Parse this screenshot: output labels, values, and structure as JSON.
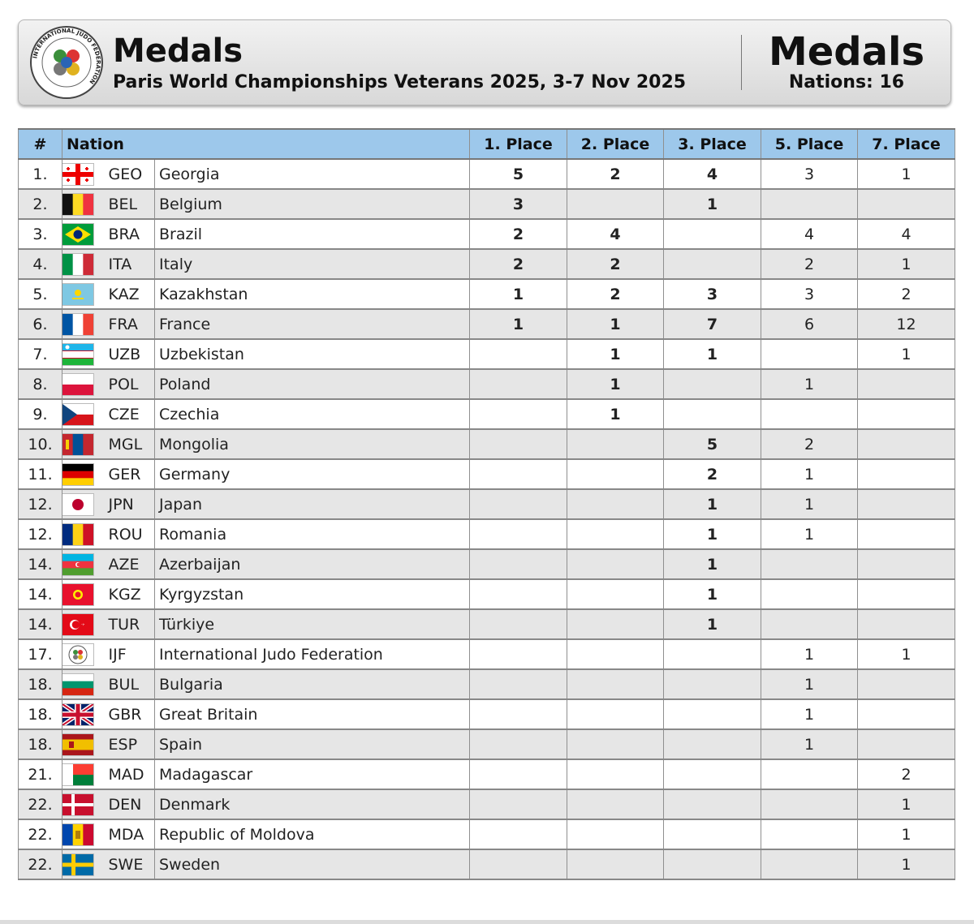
{
  "header": {
    "title": "Medals",
    "subtitle": "Paris World Championships Veterans 2025, 3-7 Nov 2025",
    "right_title": "Medals",
    "right_sub": "Nations: 16",
    "logo_text": "INTERNATIONAL JUDO FEDERATION"
  },
  "table": {
    "columns": [
      "#",
      "Nation",
      "1. Place",
      "2. Place",
      "3. Place",
      "5. Place",
      "7. Place"
    ],
    "rows": [
      {
        "rank": "1.",
        "code": "GEO",
        "name": "Georgia",
        "p1": "5",
        "p2": "2",
        "p3": "4",
        "p5": "3",
        "p7": "1",
        "flag": "geo-flag"
      },
      {
        "rank": "2.",
        "code": "BEL",
        "name": "Belgium",
        "p1": "3",
        "p2": "",
        "p3": "1",
        "p5": "",
        "p7": "",
        "flag": "bel-flag"
      },
      {
        "rank": "3.",
        "code": "BRA",
        "name": "Brazil",
        "p1": "2",
        "p2": "4",
        "p3": "",
        "p5": "4",
        "p7": "4",
        "flag": "bra-flag"
      },
      {
        "rank": "4.",
        "code": "ITA",
        "name": "Italy",
        "p1": "2",
        "p2": "2",
        "p3": "",
        "p5": "2",
        "p7": "1",
        "flag": "ita-flag"
      },
      {
        "rank": "5.",
        "code": "KAZ",
        "name": "Kazakhstan",
        "p1": "1",
        "p2": "2",
        "p3": "3",
        "p5": "3",
        "p7": "2",
        "flag": "kaz-flag"
      },
      {
        "rank": "6.",
        "code": "FRA",
        "name": "France",
        "p1": "1",
        "p2": "1",
        "p3": "7",
        "p5": "6",
        "p7": "12",
        "flag": "fra-flag"
      },
      {
        "rank": "7.",
        "code": "UZB",
        "name": "Uzbekistan",
        "p1": "",
        "p2": "1",
        "p3": "1",
        "p5": "",
        "p7": "1",
        "flag": "uzb-flag"
      },
      {
        "rank": "8.",
        "code": "POL",
        "name": "Poland",
        "p1": "",
        "p2": "1",
        "p3": "",
        "p5": "1",
        "p7": "",
        "flag": "pol-flag"
      },
      {
        "rank": "9.",
        "code": "CZE",
        "name": "Czechia",
        "p1": "",
        "p2": "1",
        "p3": "",
        "p5": "",
        "p7": "",
        "flag": "cze-flag"
      },
      {
        "rank": "10.",
        "code": "MGL",
        "name": "Mongolia",
        "p1": "",
        "p2": "",
        "p3": "5",
        "p5": "2",
        "p7": "",
        "flag": "mgl-flag"
      },
      {
        "rank": "11.",
        "code": "GER",
        "name": "Germany",
        "p1": "",
        "p2": "",
        "p3": "2",
        "p5": "1",
        "p7": "",
        "flag": "ger-flag"
      },
      {
        "rank": "12.",
        "code": "JPN",
        "name": "Japan",
        "p1": "",
        "p2": "",
        "p3": "1",
        "p5": "1",
        "p7": "",
        "flag": "jpn-flag"
      },
      {
        "rank": "12.",
        "code": "ROU",
        "name": "Romania",
        "p1": "",
        "p2": "",
        "p3": "1",
        "p5": "1",
        "p7": "",
        "flag": "rou-flag"
      },
      {
        "rank": "14.",
        "code": "AZE",
        "name": "Azerbaijan",
        "p1": "",
        "p2": "",
        "p3": "1",
        "p5": "",
        "p7": "",
        "flag": "aze-flag"
      },
      {
        "rank": "14.",
        "code": "KGZ",
        "name": "Kyrgyzstan",
        "p1": "",
        "p2": "",
        "p3": "1",
        "p5": "",
        "p7": "",
        "flag": "kgz-flag"
      },
      {
        "rank": "14.",
        "code": "TUR",
        "name": "Türkiye",
        "p1": "",
        "p2": "",
        "p3": "1",
        "p5": "",
        "p7": "",
        "flag": "tur-flag"
      },
      {
        "rank": "17.",
        "code": "IJF",
        "name": "International Judo Federation",
        "p1": "",
        "p2": "",
        "p3": "",
        "p5": "1",
        "p7": "1",
        "flag": "ijf-flag"
      },
      {
        "rank": "18.",
        "code": "BUL",
        "name": "Bulgaria",
        "p1": "",
        "p2": "",
        "p3": "",
        "p5": "1",
        "p7": "",
        "flag": "bul-flag"
      },
      {
        "rank": "18.",
        "code": "GBR",
        "name": "Great Britain",
        "p1": "",
        "p2": "",
        "p3": "",
        "p5": "1",
        "p7": "",
        "flag": "gbr-flag"
      },
      {
        "rank": "18.",
        "code": "ESP",
        "name": "Spain",
        "p1": "",
        "p2": "",
        "p3": "",
        "p5": "1",
        "p7": "",
        "flag": "esp-flag"
      },
      {
        "rank": "21.",
        "code": "MAD",
        "name": "Madagascar",
        "p1": "",
        "p2": "",
        "p3": "",
        "p5": "",
        "p7": "2",
        "flag": "mad-flag"
      },
      {
        "rank": "22.",
        "code": "DEN",
        "name": "Denmark",
        "p1": "",
        "p2": "",
        "p3": "",
        "p5": "",
        "p7": "1",
        "flag": "den-flag"
      },
      {
        "rank": "22.",
        "code": "MDA",
        "name": "Republic of Moldova",
        "p1": "",
        "p2": "",
        "p3": "",
        "p5": "",
        "p7": "1",
        "flag": "mda-flag"
      },
      {
        "rank": "22.",
        "code": "SWE",
        "name": "Sweden",
        "p1": "",
        "p2": "",
        "p3": "",
        "p5": "",
        "p7": "1",
        "flag": "swe-flag"
      }
    ]
  },
  "colors": {
    "header_row": "#9dc8eb",
    "alt_row": "#e6e6e6",
    "banner": "#e4e4e4"
  }
}
